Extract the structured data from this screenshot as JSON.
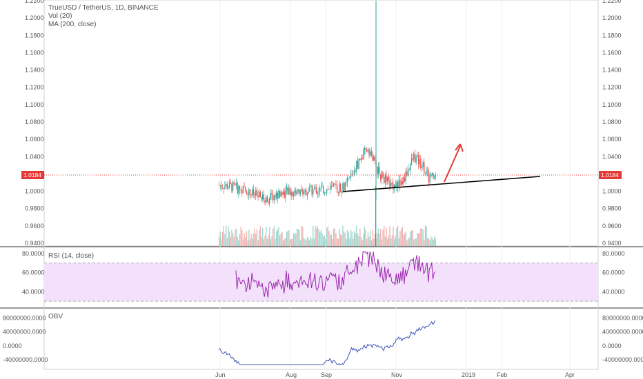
{
  "chart_header": {
    "symbol_line": "TrueUSD / TetherUS, 1D, BINANCE",
    "volume_label": "Vol (20)",
    "ma_label": "MA (200, close)"
  },
  "price_pane": {
    "y_ticks": [
      "1.2200",
      "1.2000",
      "1.1800",
      "1.1600",
      "1.1400",
      "1.1200",
      "1.1000",
      "1.0800",
      "1.0600",
      "1.0400",
      "1.0200",
      "1.0000",
      "0.9800",
      "0.9600",
      "0.9400"
    ],
    "y_tick_values": [
      1.22,
      1.2,
      1.18,
      1.16,
      1.14,
      1.12,
      1.1,
      1.08,
      1.06,
      1.04,
      1.02,
      1.0,
      0.98,
      0.96,
      0.94
    ],
    "ylim": [
      0.94,
      1.22
    ],
    "current_price_label": "1.0184",
    "current_price": 1.0184,
    "accent_color": "#e53935"
  },
  "rsi_pane": {
    "label": "RSI (14, close)",
    "y_ticks": [
      "80.0000",
      "60.0000",
      "40.0000"
    ],
    "y_tick_values": [
      80,
      60,
      40
    ],
    "ylim": [
      25,
      85
    ],
    "band": [
      30,
      70
    ],
    "line_color": "#9c27b0",
    "band_color": "#f3e1fb"
  },
  "obv_pane": {
    "label": "OBV",
    "y_ticks": [
      "80000000.0000",
      "40000000.0000",
      "0.0000",
      "-40000000.0000"
    ],
    "y_tick_values": [
      80000000,
      40000000,
      0,
      -40000000
    ],
    "ylim": [
      -62000000,
      105000000
    ],
    "line_color": "#3f51b5"
  },
  "time_axis": {
    "labels": [
      "Jun",
      "Aug",
      "Sep",
      "Nov",
      "2019",
      "Feb",
      "Apr"
    ]
  },
  "chart_data": {
    "type": "candlestick",
    "symbol": "TrueUSD / TetherUS",
    "interval": "1D",
    "exchange": "BINANCE",
    "price_range": [
      0.94,
      1.22
    ],
    "current_price": 1.0184,
    "annotations": [
      "ascending trendline from Sep ~0.999 to Jan ~1.018",
      "red arrow pointing up"
    ],
    "up_color": "#26a69a",
    "down_color": "#ef5350"
  }
}
